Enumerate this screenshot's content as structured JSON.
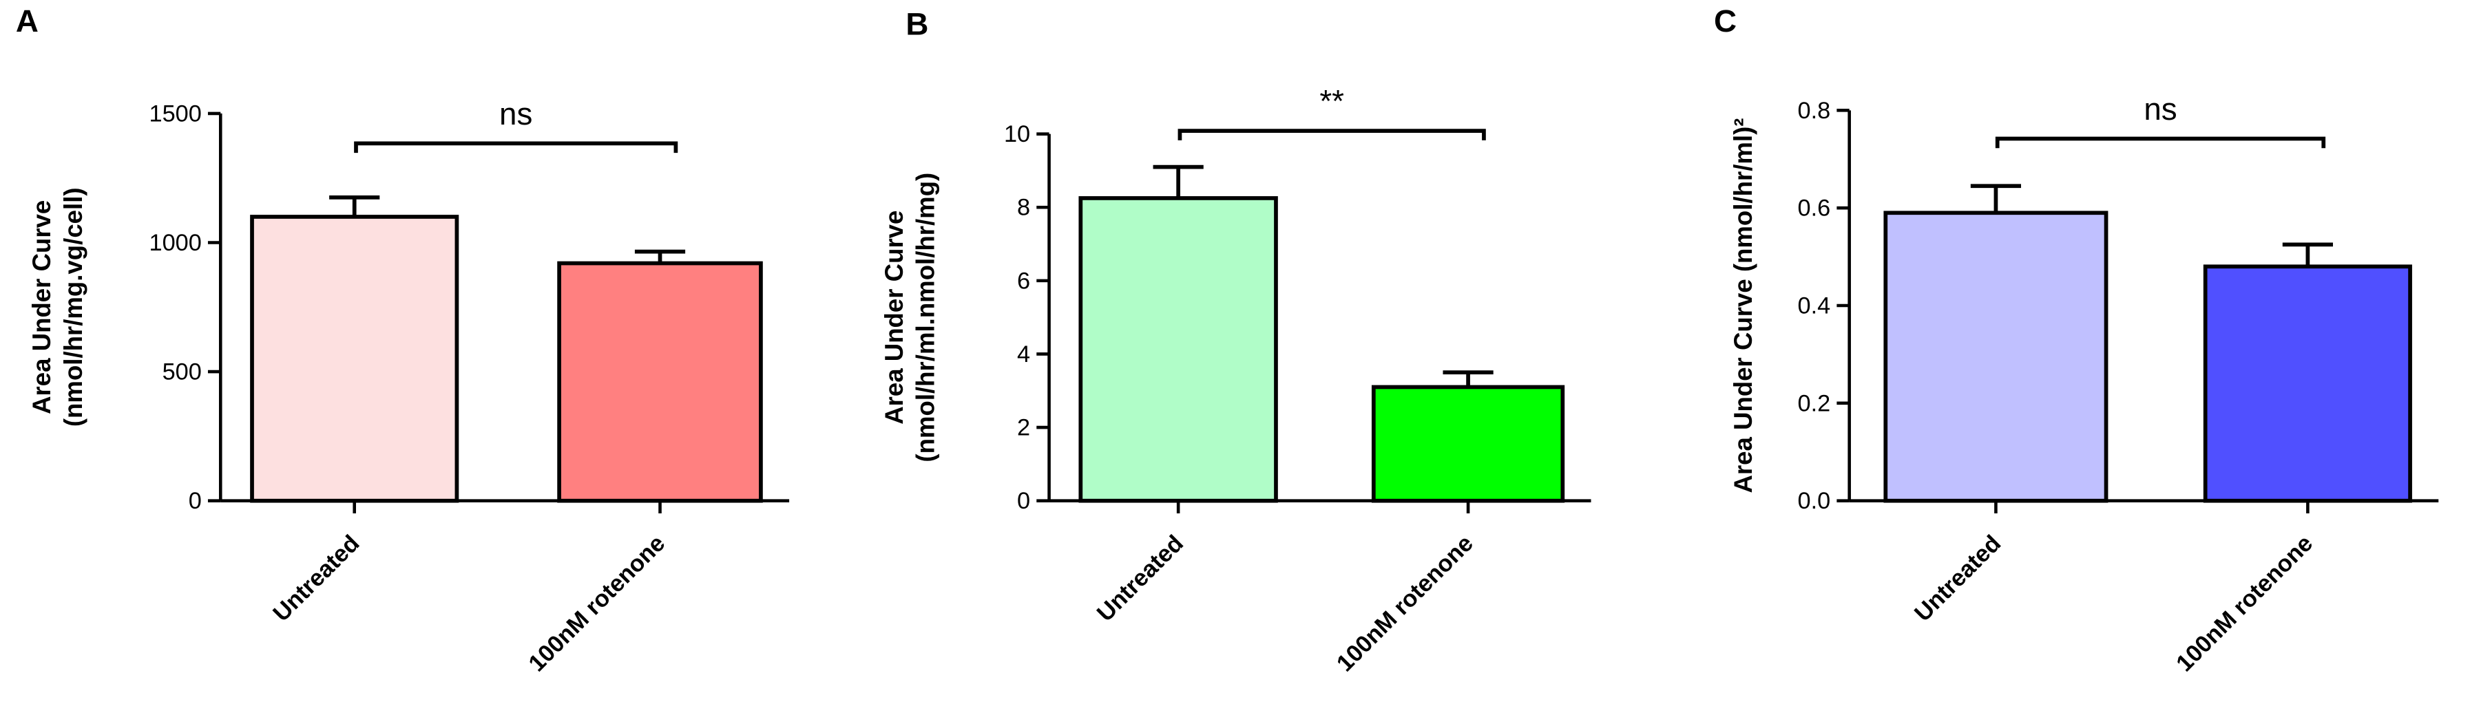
{
  "chart_data": [
    {
      "type": "bar",
      "title": "A",
      "ylabel": [
        "Area Under Curve",
        "(nmol/hr/mg.vg/cell)"
      ],
      "categories": [
        "Untreated",
        "100nM rotenone"
      ],
      "values": [
        1100,
        920
      ],
      "errors": [
        75,
        45
      ],
      "colors": [
        "#fde0e0",
        "#ff8080"
      ],
      "ylim": [
        0,
        1500
      ],
      "yticks": [
        0,
        500,
        1000,
        1500
      ],
      "annotation": "ns"
    },
    {
      "type": "bar",
      "title": "B",
      "ylabel": [
        "Area Under Curve",
        "(nmol/hr/ml.nmol/hr/mg)"
      ],
      "categories": [
        "Untreated",
        "100nM rotenone"
      ],
      "values": [
        8.25,
        3.1
      ],
      "errors": [
        0.85,
        0.4
      ],
      "colors": [
        "#b0fdc8",
        "#00ff00"
      ],
      "ylim": [
        0,
        10
      ],
      "yticks": [
        0,
        2,
        4,
        6,
        8,
        10
      ],
      "annotation": "**"
    },
    {
      "type": "bar",
      "title": "C",
      "ylabel": [
        "Area Under Curve (nmol/hr/ml)²"
      ],
      "categories": [
        "Untreated",
        "100nM rotenone"
      ],
      "values": [
        0.59,
        0.48
      ],
      "errors": [
        0.055,
        0.045
      ],
      "colors": [
        "#c0c0ff",
        "#5050ff"
      ],
      "ylim": [
        0,
        0.8
      ],
      "yticks": [
        {
          "value": 0,
          "label": "0.0"
        },
        0.2,
        0.4,
        0.6,
        0.8
      ],
      "annotation": "ns"
    }
  ]
}
